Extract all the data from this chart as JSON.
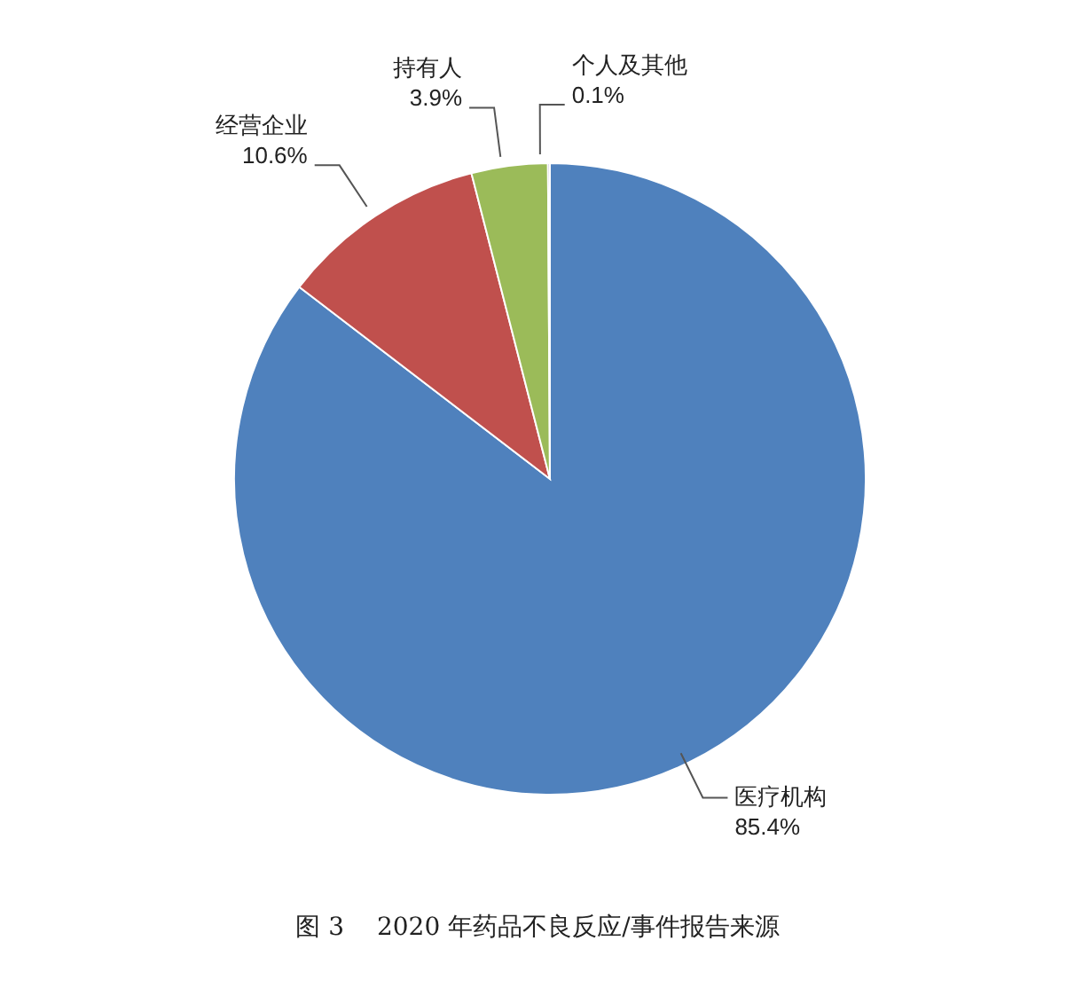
{
  "chart_data": {
    "type": "pie",
    "categories": [
      "医疗机构",
      "经营企业",
      "持有人",
      "个人及其他"
    ],
    "values": [
      85.4,
      10.6,
      3.9,
      0.1
    ],
    "colors": [
      "#4f81bd",
      "#c0504d",
      "#9bbb59",
      "#8064a2"
    ],
    "value_labels": [
      "85.4%",
      "10.6%",
      "3.9%",
      "0.1%"
    ],
    "legend": false,
    "annotations": [
      "图 3　 2020 年药品不良反应/事件报告来源"
    ]
  }
}
